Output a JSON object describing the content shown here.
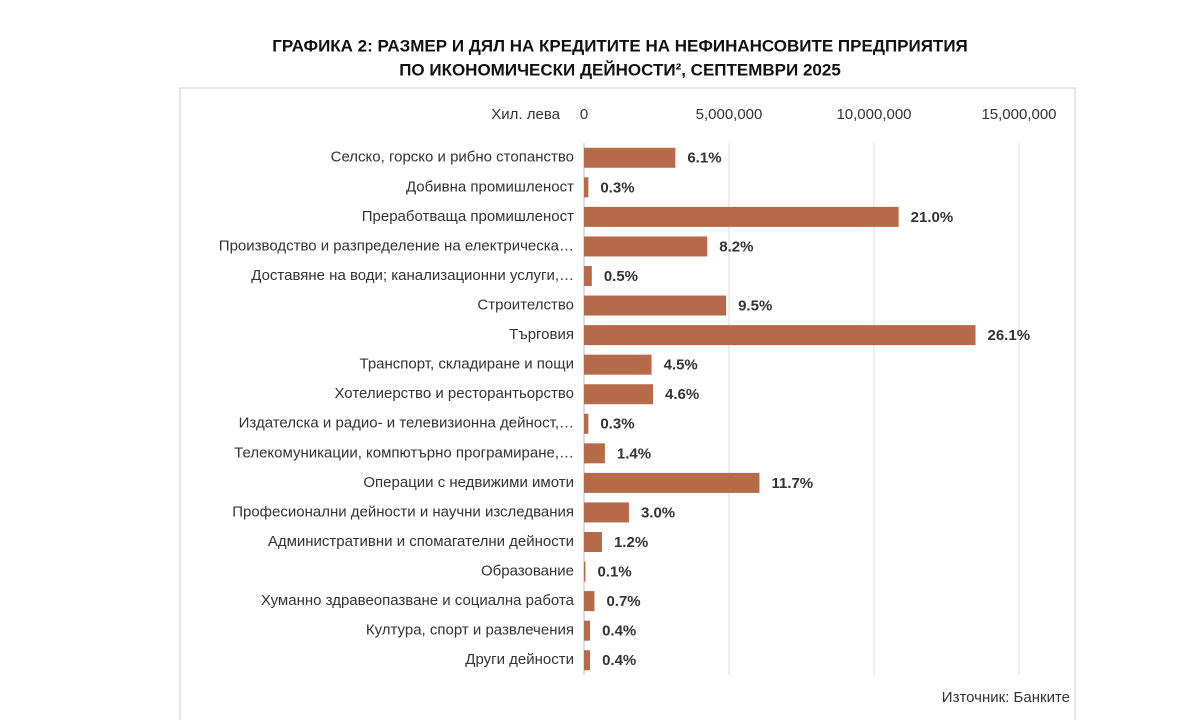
{
  "chart_data": {
    "type": "bar",
    "orientation": "horizontal",
    "title": [
      "ГРАФИКА 2: РАЗМЕР И ДЯЛ НА КРЕДИТИТЕ НА НЕФИНАНСОВИТЕ ПРЕДПРИЯТИЯ",
      "ПО ИКОНОМИЧЕСКИ ДЕЙНОСТИ², СЕПТЕМВРИ 2025"
    ],
    "x_label": "Хил. лева",
    "source": "Източник: Банките",
    "categories": [
      "Селско, горско и рибно стопанство",
      "Добивна промишленост",
      "Преработваща промишленост",
      "Производство и разпределение на електрическа…",
      "Доставяне на води; канализационни услуги,…",
      "Строителство",
      "Търговия",
      "Транспорт, складиране и пощи",
      "Хотелиерство и ресторантьорство",
      "Издателска и радио- и телевизионна дейност,…",
      "Телекомуникации, компютърно програмиране,…",
      "Операции с недвижими имоти",
      "Професионални дейности и научни изследвания",
      "Административни и спомагателни дейности",
      "Образование",
      "Хуманно здравеопазване и социална работа",
      "Култура, спорт и развлечения",
      "Други  дейности"
    ],
    "values": [
      3150000,
      150000,
      10850000,
      4250000,
      270000,
      4900000,
      13500000,
      2330000,
      2380000,
      150000,
      720000,
      6050000,
      1550000,
      620000,
      50000,
      360000,
      210000,
      210000
    ],
    "shares": [
      {
        "value": 6.1,
        "label": "6.1%"
      },
      {
        "value": 0.3,
        "label": "0.3%"
      },
      {
        "value": 21.0,
        "label": "21.0%"
      },
      {
        "value": 8.2,
        "label": "8.2%"
      },
      {
        "value": 0.5,
        "label": "0.5%"
      },
      {
        "value": 9.5,
        "label": "9.5%"
      },
      {
        "value": 26.1,
        "label": "26.1%"
      },
      {
        "value": 4.5,
        "label": "4.5%"
      },
      {
        "value": 4.6,
        "label": "4.6%"
      },
      {
        "value": 0.3,
        "label": "0.3%"
      },
      {
        "value": 1.4,
        "label": "1.4%"
      },
      {
        "value": 11.7,
        "label": "11.7%"
      },
      {
        "value": 3.0,
        "label": "3.0%"
      },
      {
        "value": 1.2,
        "label": "1.2%"
      },
      {
        "value": 0.1,
        "label": "0.1%"
      },
      {
        "value": 0.7,
        "label": "0.7%"
      },
      {
        "value": 0.4,
        "label": "0.4%"
      },
      {
        "value": 0.4,
        "label": "0.4%"
      }
    ],
    "color": "#b76a4a",
    "xlim": [
      0,
      15000000
    ],
    "xticks": [
      0,
      {
        "value": 5000000,
        "label": "5,000,000"
      },
      {
        "value": 10000000,
        "label": "10,000,000"
      },
      {
        "value": 15000000,
        "label": "15,000,000"
      }
    ],
    "grid": true
  }
}
